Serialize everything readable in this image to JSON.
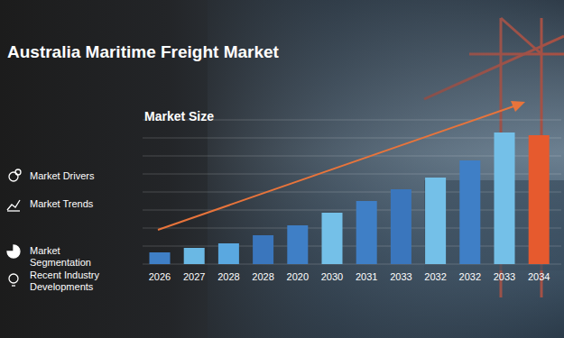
{
  "chart_data": {
    "type": "bar",
    "title": "Australia Maritime Freight Market",
    "subtitle": "Market Size",
    "annotations": [
      "Market Drivers",
      "Market Trends",
      "Market Segmentation",
      "Recent Industry Developments"
    ],
    "categories": [
      "2026",
      "2027",
      "2028",
      "2028",
      "2020",
      "2030",
      "2031",
      "2033",
      "2032",
      "2032",
      "2033",
      "2034"
    ],
    "values": [
      13,
      18,
      23,
      32,
      43,
      57,
      70,
      83,
      96,
      115,
      146,
      143
    ],
    "colors": [
      "#3f7fc6",
      "#6ab8e4",
      "#5aa8e0",
      "#3a76bd",
      "#3f7fc6",
      "#74c0e8",
      "#3f7fc6",
      "#3a76bd",
      "#74c0e8",
      "#3f7fc6",
      "#74c0e8",
      "#e65a2e"
    ],
    "ylim": [
      0,
      160
    ],
    "yticks": [
      0,
      20,
      40,
      60,
      80,
      100,
      120,
      140,
      160
    ],
    "grid": true,
    "tick_labels": "x"
  }
}
